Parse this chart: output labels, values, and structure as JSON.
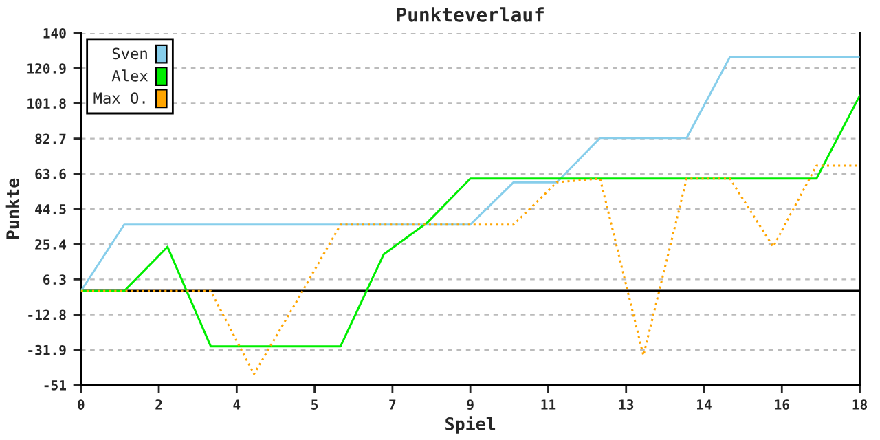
{
  "chart_data": {
    "type": "line",
    "title": "Punkteverlauf",
    "xlabel": "Spiel",
    "ylabel": "Punkte",
    "x": [
      0,
      1,
      2,
      3,
      4,
      5,
      6,
      7,
      8,
      9,
      10,
      11,
      12,
      13,
      14,
      15,
      16,
      17,
      18
    ],
    "series": [
      {
        "name": "Sven",
        "color": "#87ceeb",
        "values": [
          0,
          36,
          36,
          36,
          36,
          36,
          36,
          36,
          36,
          36,
          59,
          59,
          83,
          83,
          83,
          127,
          127,
          127,
          127
        ]
      },
      {
        "name": "Alex",
        "color": "#00ee00",
        "values": [
          0,
          0,
          24,
          -30,
          -30,
          -30,
          -30,
          20,
          37,
          61,
          61,
          61,
          61,
          61,
          61,
          61,
          61,
          61,
          106
        ]
      },
      {
        "name": "Max O.",
        "color": "#ffa500",
        "line_style": "dotted",
        "values": [
          0,
          0,
          0,
          0,
          -45,
          -5,
          36,
          36,
          36,
          36,
          36,
          59,
          61,
          -35,
          61,
          61,
          24,
          68,
          68
        ]
      }
    ],
    "xlim": [
      0,
      18
    ],
    "xticks": [
      0,
      {
        "value": 1.8,
        "label": "2"
      },
      {
        "value": 3.6,
        "label": "4"
      },
      {
        "value": 5.4,
        "label": "5"
      },
      {
        "value": 7.2,
        "label": "7"
      },
      9,
      {
        "value": 10.8,
        "label": "11"
      },
      {
        "value": 12.6,
        "label": "13"
      },
      {
        "value": 14.4,
        "label": "14"
      },
      {
        "value": 16.2,
        "label": "16"
      },
      18
    ],
    "ylim": [
      -51,
      140
    ],
    "yticks": [
      -51,
      -31.9,
      -12.8,
      6.3,
      25.4,
      44.5,
      63.6,
      82.7,
      101.8,
      120.9,
      140
    ],
    "ref_lines": [
      {
        "axis": "y",
        "value": 0,
        "color": "#000000"
      }
    ],
    "grid": "y",
    "legend": "top left",
    "line_style": "solid",
    "marker": "none"
  }
}
